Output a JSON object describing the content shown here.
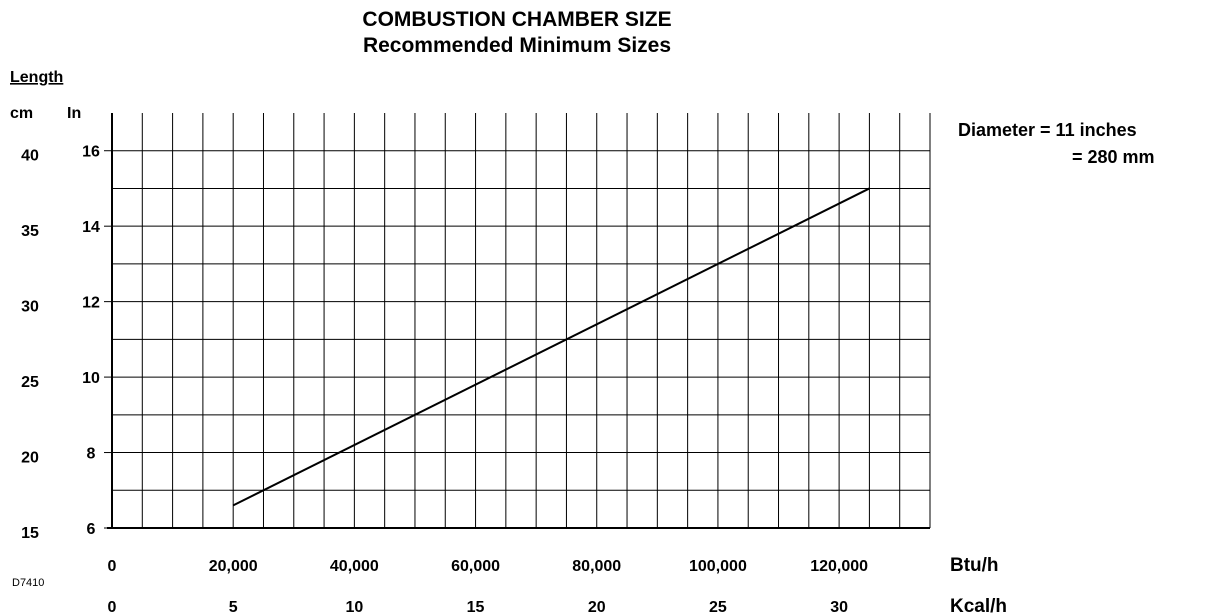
{
  "chart_data": {
    "type": "line",
    "title": "COMBUSTION CHAMBER SIZE",
    "subtitle": "Recommended Minimum Sizes",
    "ylabel": "Length",
    "y_units": {
      "cm": "cm",
      "in": "In"
    },
    "y_ticks_in": [
      "16",
      "14",
      "12",
      "10",
      "8",
      "6"
    ],
    "y_ticks_cm": [
      "40",
      "35",
      "30",
      "25",
      "20",
      "15"
    ],
    "ylim_in": [
      6,
      16
    ],
    "x_ticks_btu": [
      "0",
      "20,000",
      "40,000",
      "60,000",
      "80,000",
      "100,000",
      "120,000"
    ],
    "x_unit_btu": "Btu/h",
    "x_ticks_kcal": [
      "0",
      "5",
      "10",
      "15",
      "20",
      "25",
      "30"
    ],
    "x_unit_kcal": "Kcal/h",
    "xlim_btu": [
      0,
      135000
    ],
    "grid": true,
    "series": [
      {
        "x": [
          20000,
          125000
        ],
        "y": [
          6.6,
          15.0
        ]
      }
    ],
    "annotations": {
      "diameter_line1": "Diameter = 11 inches",
      "diameter_line2": "= 280 mm",
      "figure_code": "D7410"
    }
  }
}
